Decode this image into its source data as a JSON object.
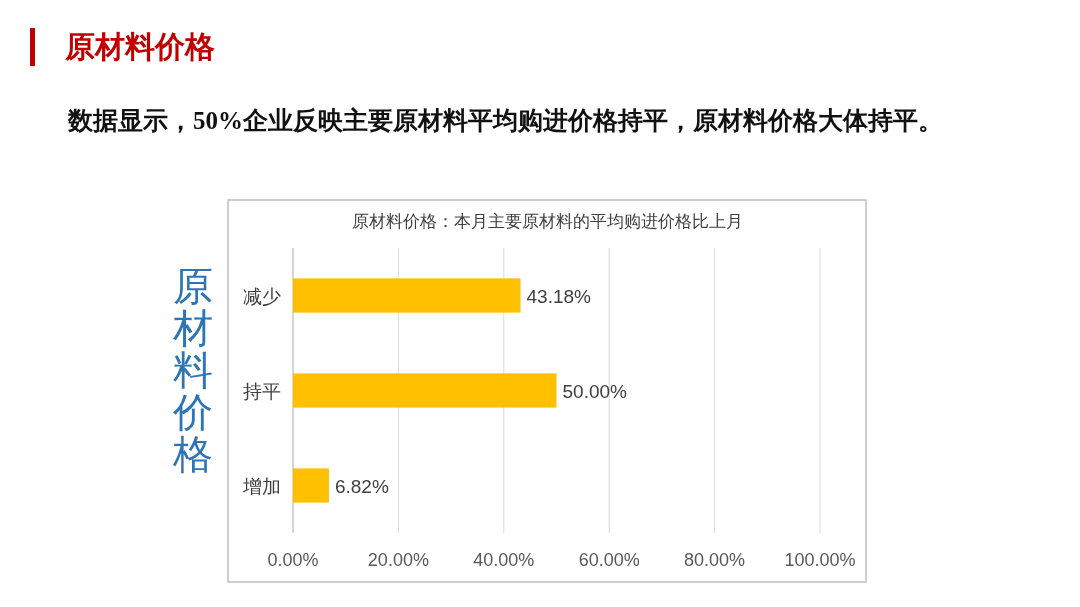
{
  "chart_data": {
    "type": "bar",
    "orientation": "horizontal",
    "title": "原材料价格：本月主要原材料的平均购进价格比上月",
    "ylabel": "原材料价格",
    "annotations": [
      "原材料价格",
      "数据显示，50%企业反映主要原材料平均购进价格持平，原材料价格大体持平。"
    ],
    "categories": [
      "减少",
      "持平",
      "增加"
    ],
    "values": [
      43.18,
      50.0,
      6.82
    ],
    "value_labels": [
      "43.18%",
      "50.00%",
      "6.82%"
    ],
    "color": "#ffc000",
    "xlim": [
      0,
      100
    ],
    "xticks": [
      {
        "value": 0,
        "label": "0.00%"
      },
      {
        "value": 20,
        "label": "20.00%"
      },
      {
        "value": 40,
        "label": "40.00%"
      },
      {
        "value": 60,
        "label": "60.00%"
      },
      {
        "value": 80,
        "label": "80.00%"
      },
      {
        "value": 100,
        "label": "100.00%"
      }
    ],
    "grid": "x"
  }
}
